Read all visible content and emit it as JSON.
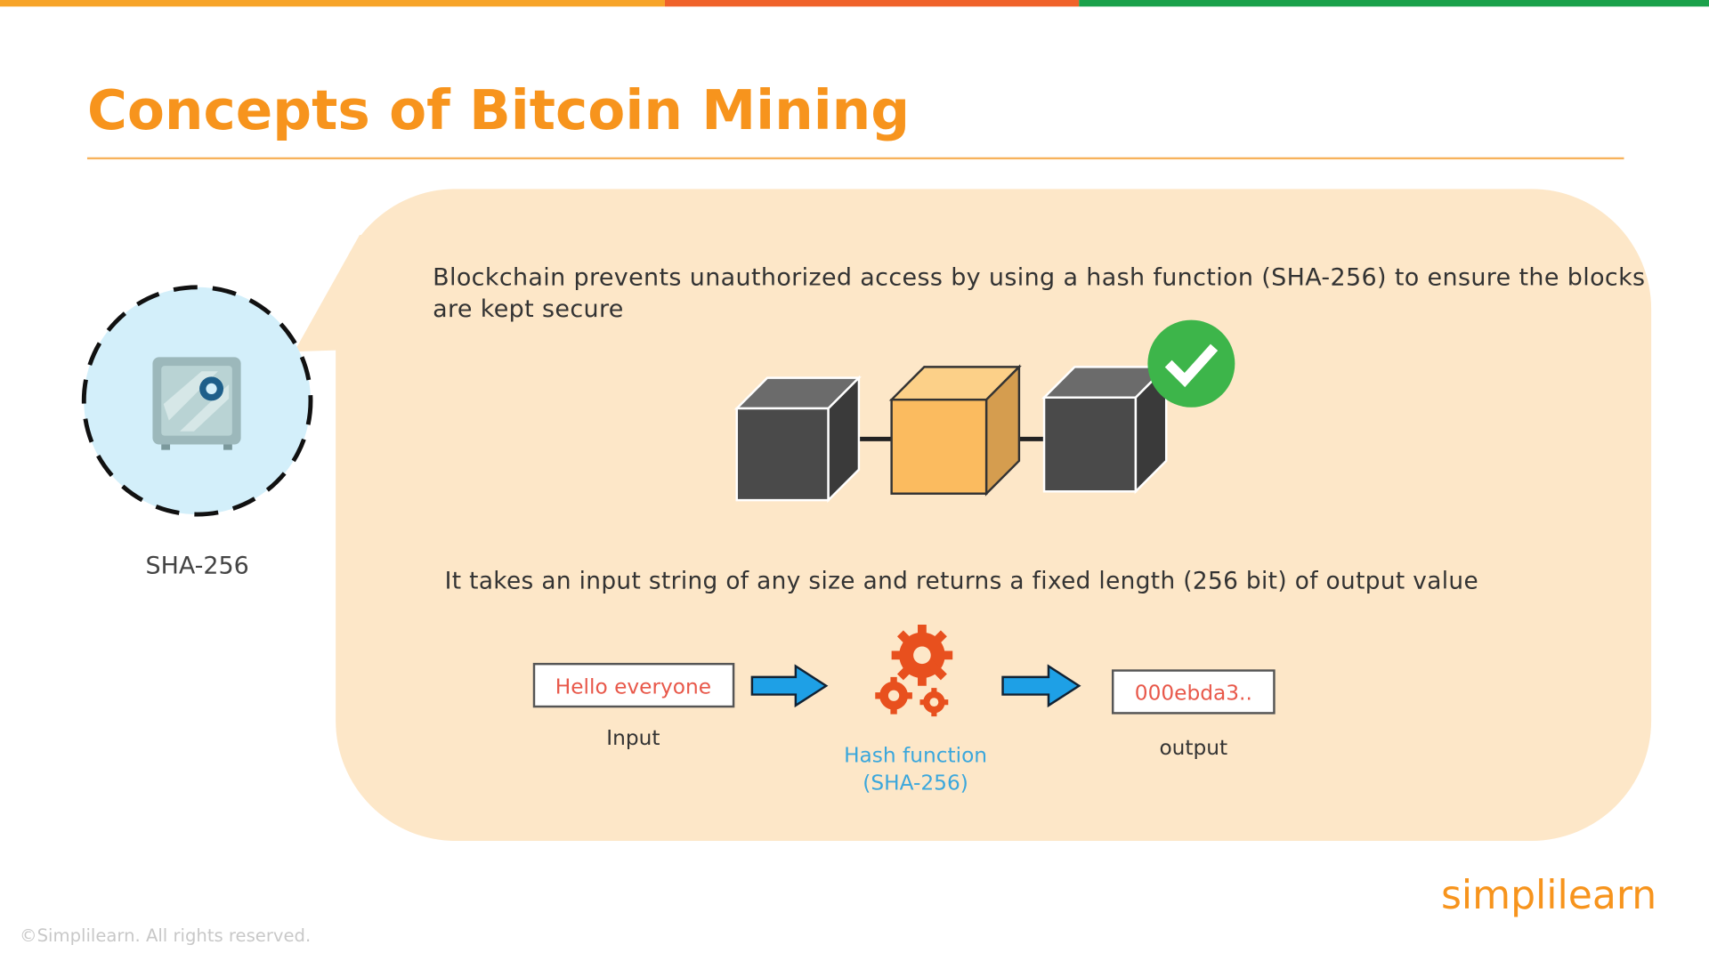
{
  "slide": {
    "title": "Concepts of Bitcoin Mining",
    "icon_label": "SHA-256",
    "paragraph1": "Blockchain prevents unauthorized access by using a hash function (SHA-256) to ensure the blocks are kept secure",
    "paragraph2": "It takes an input string of any size and returns a fixed length (256 bit) of output value",
    "input_text": "Hello everyone",
    "input_label": "Input",
    "hash_label_line1": "Hash function",
    "hash_label_line2": "(SHA-256)",
    "output_text": "000ebda3..",
    "output_label": "output",
    "logo": "simplilearn",
    "copyright": "©Simplilearn. All rights reserved."
  }
}
